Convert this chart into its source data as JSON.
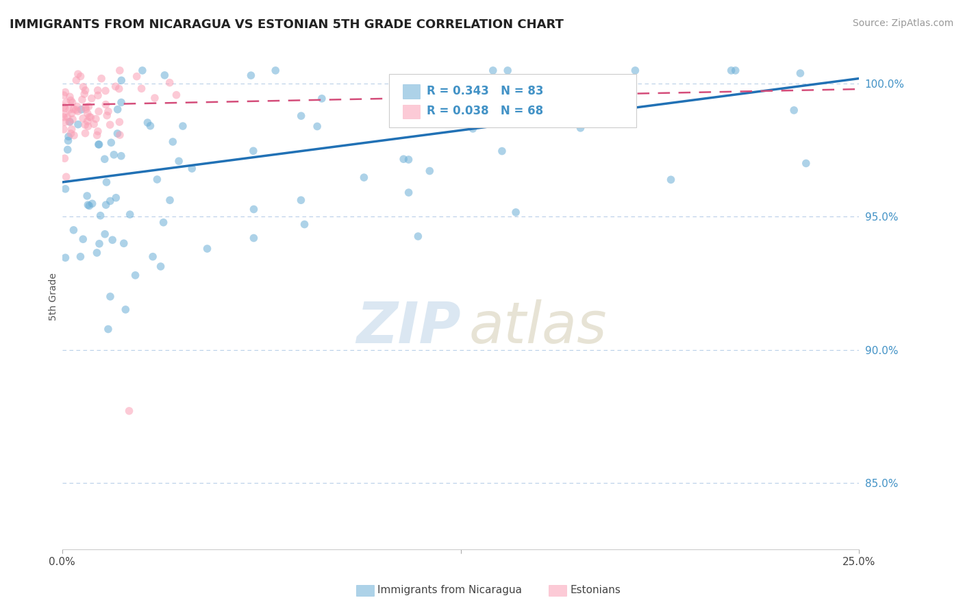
{
  "title": "IMMIGRANTS FROM NICARAGUA VS ESTONIAN 5TH GRADE CORRELATION CHART",
  "source": "Source: ZipAtlas.com",
  "ylabel": "5th Grade",
  "ytick_labels": [
    "85.0%",
    "90.0%",
    "95.0%",
    "100.0%"
  ],
  "ytick_values": [
    0.85,
    0.9,
    0.95,
    1.0
  ],
  "xlim": [
    0.0,
    0.25
  ],
  "ylim": [
    0.825,
    1.015
  ],
  "blue_R": 0.343,
  "blue_N": 83,
  "pink_R": 0.038,
  "pink_N": 68,
  "blue_color": "#6baed6",
  "pink_color": "#fa9fb5",
  "blue_line_color": "#2171b5",
  "pink_line_color": "#d44d7a",
  "legend_label_blue": "Immigrants from Nicaragua",
  "legend_label_pink": "Estonians",
  "grid_color": "#b8cfe8"
}
